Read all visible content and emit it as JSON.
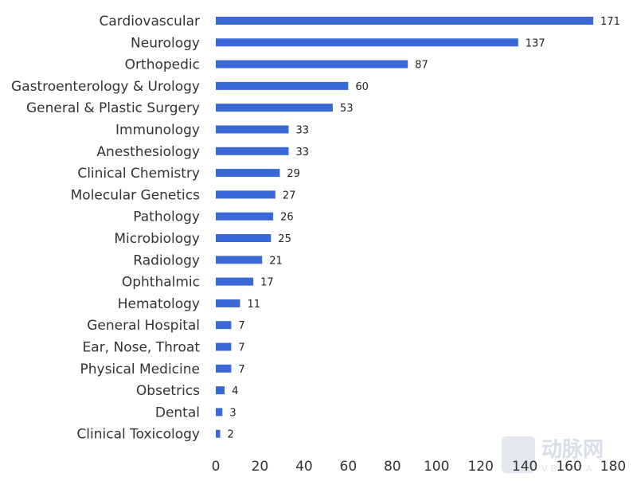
{
  "chart_data": {
    "type": "bar",
    "orientation": "horizontal",
    "categories": [
      "Cardiovascular",
      "Neurology",
      "Orthopedic",
      "Gastroenterology & Urology",
      "General & Plastic Surgery",
      "Immunology",
      "Anesthesiology",
      "Clinical Chemistry",
      "Molecular Genetics",
      "Pathology",
      "Microbiology",
      "Radiology",
      "Ophthalmic",
      "Hematology",
      "General Hospital",
      "Ear, Nose, Throat",
      "Physical Medicine",
      "Obsetrics",
      "Dental",
      "Clinical Toxicology"
    ],
    "values": [
      171,
      137,
      87,
      60,
      53,
      33,
      33,
      29,
      27,
      26,
      25,
      21,
      17,
      11,
      7,
      7,
      7,
      4,
      3,
      2
    ],
    "xlim": [
      0,
      180
    ],
    "xticks": [
      "0",
      "20",
      "40",
      "60",
      "80",
      "100",
      "120",
      "140",
      "160",
      "180"
    ],
    "bar_color": "#3a68d6",
    "grid": false,
    "data_labels": true
  },
  "watermark": {
    "logo_text": "动脉网",
    "sub_text": "VBDATA"
  }
}
